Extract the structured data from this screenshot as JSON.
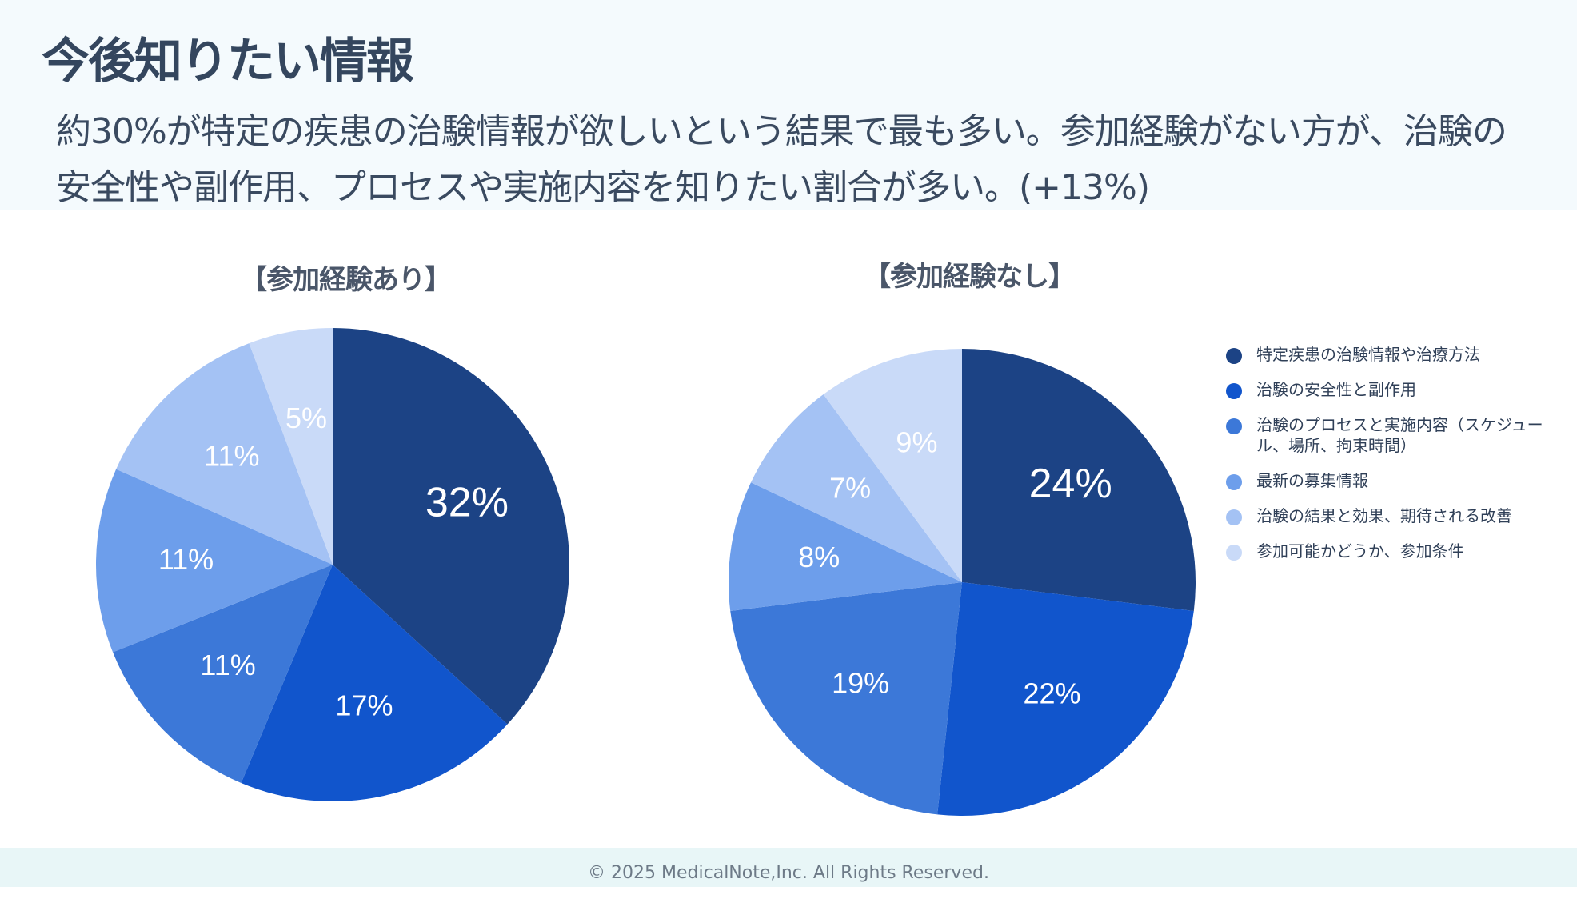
{
  "header": {
    "title": "今後知りたい情報",
    "subtitle_line1": "約30%が特定の疾患の治験情報が欲しいという結果で最も多い。参加経験がない方が、治験の",
    "subtitle_line2": "安全性や副作用、プロセスや実施内容を知りたい割合が多い。(+13%)"
  },
  "legend": [
    {
      "label": "特定疾患の治験情報や治療方法",
      "color": "#1c4385"
    },
    {
      "label": "治験の安全性と副作用",
      "color": "#1155cc"
    },
    {
      "label": "治験のプロセスと実施内容（スケジュール、場所、拘束時間）",
      "color": "#3c78d8"
    },
    {
      "label": "最新の募集情報",
      "color": "#6d9eeb"
    },
    {
      "label": "治験の結果と効果、期待される改善",
      "color": "#a4c2f4"
    },
    {
      "label": "参加可能かどうか、参加条件",
      "color": "#c9daf8"
    }
  ],
  "chart_data": [
    {
      "type": "pie",
      "title": "【参加経験あり】",
      "categories": [
        "特定疾患の治験情報や治療方法",
        "治験の安全性と副作用",
        "治験のプロセスと実施内容（スケジュール、場所、拘束時間）",
        "最新の募集情報",
        "治験の結果と効果、期待される改善",
        "参加可能かどうか、参加条件"
      ],
      "values": [
        32,
        17,
        11,
        11,
        11,
        5
      ],
      "labels": [
        "32%",
        "17%",
        "11%",
        "11%",
        "11%",
        "5%"
      ],
      "colors": [
        "#1c4385",
        "#1155cc",
        "#3c78d8",
        "#6d9eeb",
        "#a4c2f4",
        "#c9daf8"
      ],
      "legend": "right"
    },
    {
      "type": "pie",
      "title": "【参加経験なし】",
      "categories": [
        "特定疾患の治験情報や治療方法",
        "治験の安全性と副作用",
        "治験のプロセスと実施内容（スケジュール、場所、拘束時間）",
        "最新の募集情報",
        "治験の結果と効果、期待される改善",
        "参加可能かどうか、参加条件"
      ],
      "values": [
        24,
        22,
        19,
        8,
        7,
        9
      ],
      "labels": [
        "24%",
        "22%",
        "19%",
        "8%",
        "7%",
        "9%"
      ],
      "colors": [
        "#1c4385",
        "#1155cc",
        "#3c78d8",
        "#6d9eeb",
        "#a4c2f4",
        "#c9daf8"
      ],
      "legend": "right"
    }
  ],
  "footer": {
    "copyright": "© 2025 MedicalNote,Inc. All Rights Reserved."
  }
}
